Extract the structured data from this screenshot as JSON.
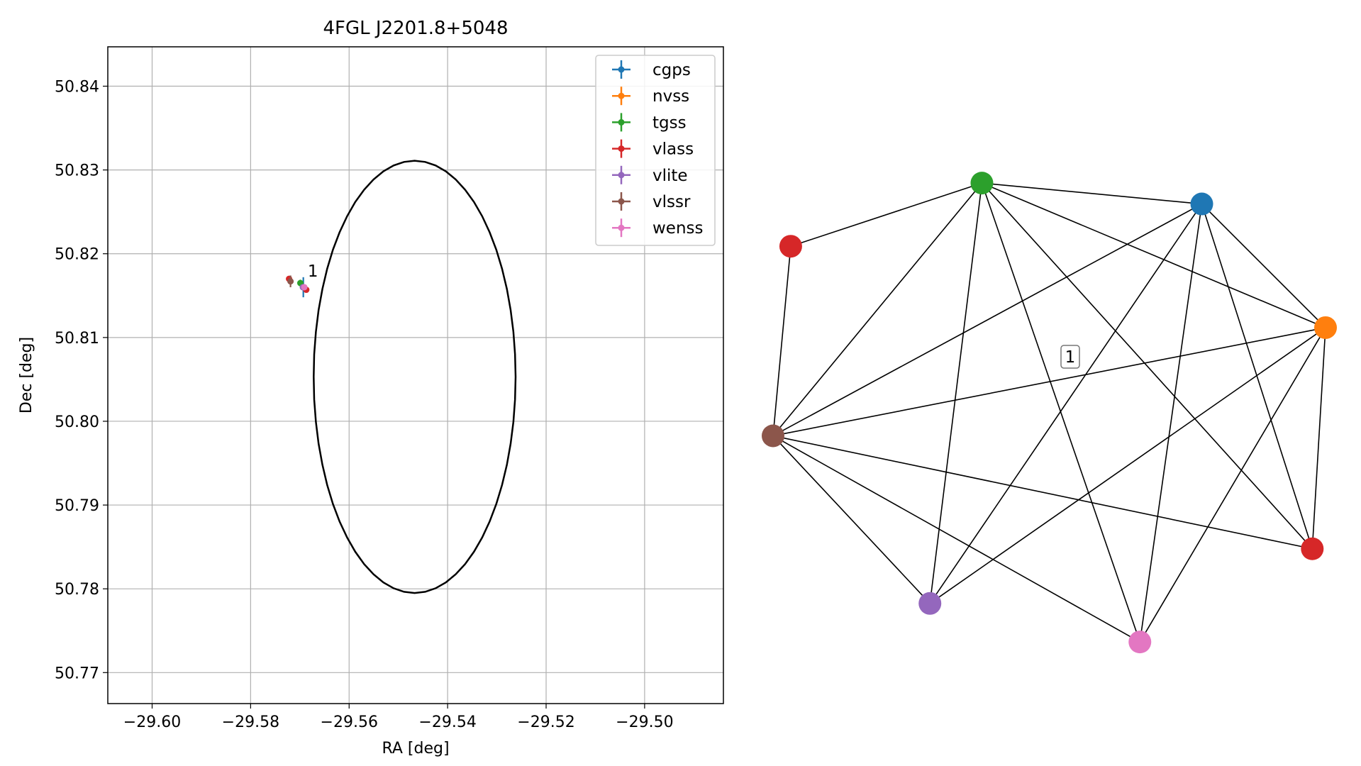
{
  "chart_data": [
    {
      "type": "scatter",
      "title": "4FGL J2201.8+5048",
      "xlabel": "RA [deg]",
      "ylabel": "Dec [deg]",
      "xlim": [
        -29.609,
        -29.484
      ],
      "ylim": [
        50.7663,
        50.8447
      ],
      "xticks": [
        -29.6,
        -29.58,
        -29.56,
        -29.54,
        -29.52,
        -29.5
      ],
      "xtick_labels": [
        "−29.60",
        "−29.58",
        "−29.56",
        "−29.54",
        "−29.52",
        "−29.50"
      ],
      "yticks": [
        50.77,
        50.78,
        50.79,
        50.8,
        50.81,
        50.82,
        50.83,
        50.84
      ],
      "ytick_labels": [
        "50.77",
        "50.78",
        "50.79",
        "50.80",
        "50.81",
        "50.82",
        "50.83",
        "50.84"
      ],
      "grid": true,
      "legend_position": "top-right",
      "series": [
        {
          "name": "cgps",
          "color": "#1f77b4",
          "x": [
            -29.5693
          ],
          "y": [
            50.816
          ],
          "xerr": [
            0.0003
          ],
          "yerr": [
            0.0012
          ]
        },
        {
          "name": "nvss",
          "color": "#ff7f0e",
          "x": [
            -29.5693
          ],
          "y": [
            50.816
          ],
          "xerr": [
            0.0003
          ],
          "yerr": [
            0.0003
          ]
        },
        {
          "name": "tgss",
          "color": "#2ca02c",
          "x": [
            -29.5699
          ],
          "y": [
            50.8165
          ],
          "xerr": [
            0.0003
          ],
          "yerr": [
            0.0004
          ]
        },
        {
          "name": "vlass",
          "color": "#d62728",
          "x": [
            -29.5722,
            -29.5687
          ],
          "y": [
            50.817,
            50.8157
          ],
          "xerr": [
            0.0002,
            0.0002
          ],
          "yerr": [
            0.0002,
            0.0002
          ]
        },
        {
          "name": "vlite",
          "color": "#9467bd",
          "x": [
            -29.5694
          ],
          "y": [
            50.816
          ],
          "xerr": [
            0.0002
          ],
          "yerr": [
            0.0002
          ]
        },
        {
          "name": "vlssr",
          "color": "#8c564b",
          "x": [
            -29.5719
          ],
          "y": [
            50.8167
          ],
          "xerr": [
            0.0003
          ],
          "yerr": [
            0.0007
          ]
        },
        {
          "name": "wenss",
          "color": "#e377c2",
          "x": [
            -29.5691
          ],
          "y": [
            50.816
          ],
          "xerr": [
            0.0003
          ],
          "yerr": [
            0.0003
          ]
        }
      ],
      "ellipse": {
        "center": [
          -29.5467,
          50.8053
        ],
        "ra_radius": 0.0205,
        "dec_radius": 0.0258,
        "color": "#000000"
      },
      "annotations": [
        {
          "text": "1",
          "x": -29.5684,
          "y": 50.817
        }
      ]
    },
    {
      "type": "network",
      "nodes": [
        {
          "id": "cgps",
          "color": "#1f77b4",
          "x": 0.776,
          "y": 0.839
        },
        {
          "id": "nvss",
          "color": "#ff7f0e",
          "x": 1.0,
          "y": 0.608
        },
        {
          "id": "tgss",
          "color": "#2ca02c",
          "x": 0.378,
          "y": 0.878
        },
        {
          "id": "vlass_a",
          "color": "#d62728",
          "x": 0.032,
          "y": 0.76
        },
        {
          "id": "vlass_b",
          "color": "#d62728",
          "x": 0.976,
          "y": 0.195
        },
        {
          "id": "vlite",
          "color": "#9467bd",
          "x": 0.284,
          "y": 0.093
        },
        {
          "id": "vlssr",
          "color": "#8c564b",
          "x": 0.0,
          "y": 0.406
        },
        {
          "id": "wenss",
          "color": "#e377c2",
          "x": 0.664,
          "y": 0.021
        }
      ],
      "edges": [
        [
          "tgss",
          "cgps"
        ],
        [
          "tgss",
          "vlass_a"
        ],
        [
          "tgss",
          "nvss"
        ],
        [
          "tgss",
          "vlssr"
        ],
        [
          "tgss",
          "vlite"
        ],
        [
          "tgss",
          "wenss"
        ],
        [
          "tgss",
          "vlass_b"
        ],
        [
          "cgps",
          "nvss"
        ],
        [
          "cgps",
          "vlssr"
        ],
        [
          "cgps",
          "vlite"
        ],
        [
          "cgps",
          "wenss"
        ],
        [
          "cgps",
          "vlass_b"
        ],
        [
          "vlass_a",
          "vlssr"
        ],
        [
          "nvss",
          "vlssr"
        ],
        [
          "nvss",
          "vlite"
        ],
        [
          "nvss",
          "wenss"
        ],
        [
          "nvss",
          "vlass_b"
        ],
        [
          "vlssr",
          "vlite"
        ],
        [
          "vlssr",
          "wenss"
        ],
        [
          "vlssr",
          "vlass_b"
        ]
      ],
      "label": "1"
    }
  ]
}
